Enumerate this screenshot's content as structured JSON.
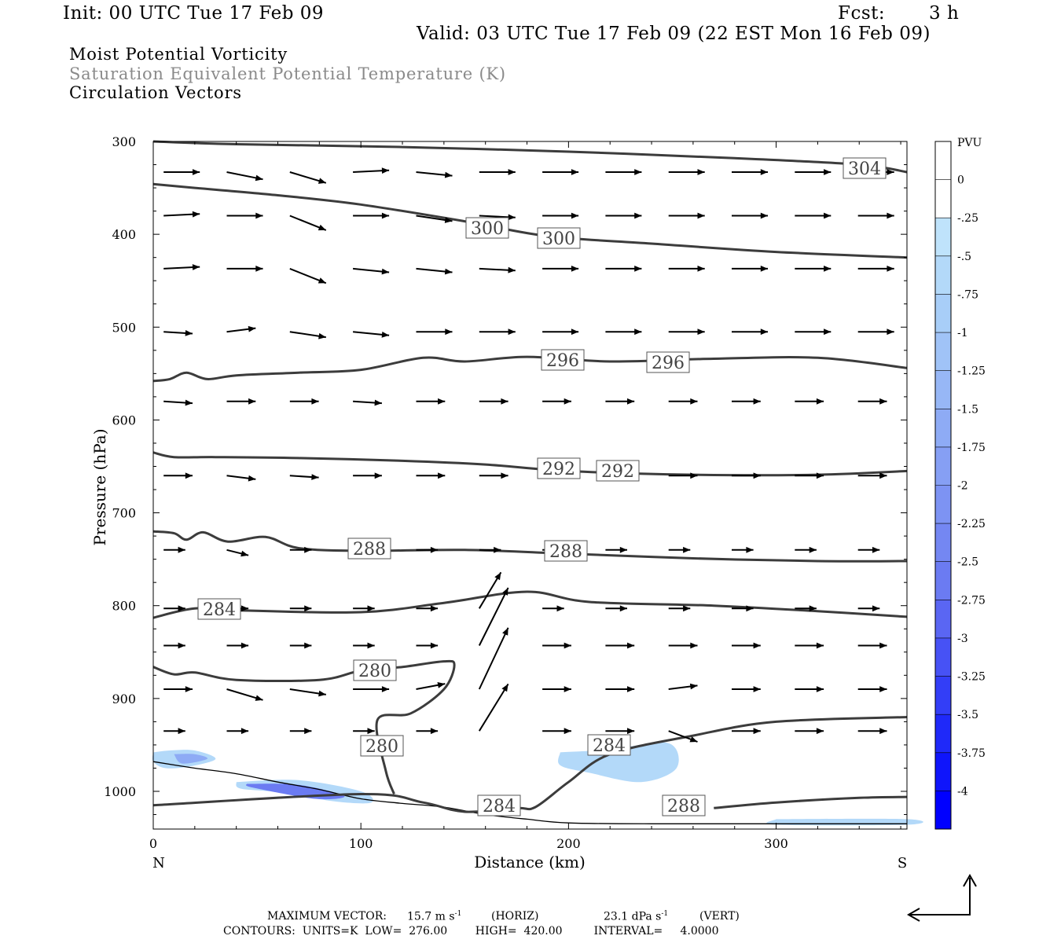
{
  "header": {
    "init": "Init: 00 UTC Tue 17 Feb 09",
    "fcst_label": "Fcst:",
    "fcst_value": "3 h",
    "valid": "Valid: 03 UTC Tue 17 Feb 09 (22 EST Mon 16 Feb 09)"
  },
  "fields": {
    "line1": "Moist Potential Vorticity",
    "line2": "Saturation Equivalent Potential Temperature (K)",
    "line3": "Circulation Vectors"
  },
  "colors": {
    "contour": "#3c3c3c",
    "accent_gray": "#8a8a8a",
    "pv_light": "#bfe3fb",
    "pv_dark": "#0000ff"
  },
  "footer": {
    "max_vector_label": "MAXIMUM VECTOR:",
    "max_horiz": "15.7 m s",
    "horiz_tag": "(HORIZ)",
    "max_vert": "23.1 dPa s",
    "vert_tag": "(VERT)",
    "contours": "CONTOURS:  UNITS=K  LOW=  276.00        HIGH=  420.00         INTERVAL=     4.0000"
  },
  "chart_data": {
    "type": "contour-cross-section",
    "xlabel": "Distance (km)",
    "ylabel": "Pressure (hPa)",
    "xlim": [
      0,
      363
    ],
    "ylim": [
      1040,
      300
    ],
    "x_ticks": [
      0,
      100,
      200,
      300
    ],
    "y_ticks": [
      300,
      400,
      500,
      600,
      700,
      800,
      900,
      1000
    ],
    "x_end_labels": {
      "left": "N",
      "right": "S"
    },
    "colorbar": {
      "title": "PVU",
      "levels": [
        "0",
        "-.25",
        "-.5",
        "-.75",
        "-1",
        "-1.25",
        "-1.5",
        "-1.75",
        "-2",
        "-2.25",
        "-2.5",
        "-2.75",
        "-3",
        "-3.25",
        "-3.5",
        "-3.75",
        "-4"
      ],
      "colors": [
        "#ffffff",
        "#ffffff",
        "#bfe3fb",
        "#b3d9f9",
        "#a8cef8",
        "#a0c3f7",
        "#97b7f6",
        "#8eabf5",
        "#869ff4",
        "#7d93f3",
        "#7487f2",
        "#6b7bf2",
        "#5a66f3",
        "#4752f5",
        "#333ef7",
        "#1f29f9",
        "#0f15fb",
        "#0000ff"
      ]
    },
    "contour_labels": [
      "304",
      "300",
      "300",
      "296",
      "296",
      "292",
      "292",
      "288",
      "288",
      "284",
      "280",
      "280",
      "284",
      "284",
      "288"
    ],
    "contours": [
      {
        "level": 304,
        "points": [
          [
            0,
            300
          ],
          [
            40,
            303
          ],
          [
            120,
            306
          ],
          [
            200,
            311
          ],
          [
            280,
            318
          ],
          [
            340,
            325
          ],
          [
            363,
            333
          ]
        ]
      },
      {
        "level": 300,
        "points": [
          [
            0,
            346
          ],
          [
            20,
            350
          ],
          [
            60,
            358
          ],
          [
            100,
            368
          ],
          [
            150,
            386
          ],
          [
            190,
            402
          ],
          [
            240,
            410
          ],
          [
            300,
            419
          ],
          [
            363,
            425
          ]
        ]
      },
      {
        "level": 296,
        "points": [
          [
            0,
            558
          ],
          [
            8,
            556
          ],
          [
            16,
            549
          ],
          [
            26,
            556
          ],
          [
            40,
            552
          ],
          [
            70,
            549
          ],
          [
            100,
            546
          ],
          [
            130,
            533
          ],
          [
            150,
            537
          ],
          [
            180,
            532
          ],
          [
            220,
            537
          ],
          [
            270,
            534
          ],
          [
            320,
            533
          ],
          [
            363,
            544
          ]
        ]
      },
      {
        "level": 292,
        "points": [
          [
            0,
            635
          ],
          [
            10,
            640
          ],
          [
            30,
            640
          ],
          [
            70,
            641
          ],
          [
            120,
            644
          ],
          [
            160,
            648
          ],
          [
            200,
            655
          ],
          [
            260,
            659
          ],
          [
            320,
            659
          ],
          [
            363,
            655
          ]
        ]
      },
      {
        "level": 288,
        "points": [
          [
            0,
            720
          ],
          [
            10,
            722
          ],
          [
            16,
            729
          ],
          [
            24,
            721
          ],
          [
            36,
            731
          ],
          [
            54,
            726
          ],
          [
            70,
            738
          ],
          [
            100,
            741
          ],
          [
            150,
            740
          ],
          [
            200,
            744
          ],
          [
            260,
            749
          ],
          [
            320,
            752
          ],
          [
            363,
            752
          ]
        ]
      },
      {
        "level": 284,
        "points": [
          [
            0,
            813
          ],
          [
            20,
            803
          ],
          [
            40,
            805
          ],
          [
            100,
            807
          ],
          [
            140,
            797
          ],
          [
            180,
            785
          ],
          [
            210,
            796
          ],
          [
            270,
            800
          ],
          [
            320,
            806
          ],
          [
            363,
            812
          ]
        ]
      },
      {
        "level": 280,
        "points": [
          [
            0,
            866
          ],
          [
            10,
            874
          ],
          [
            20,
            872
          ],
          [
            40,
            880
          ],
          [
            80,
            880
          ],
          [
            100,
            870
          ],
          [
            120,
            866
          ],
          [
            140,
            860
          ],
          [
            145,
            864
          ],
          [
            140,
            890
          ],
          [
            124,
            916
          ],
          [
            108,
            923
          ],
          [
            112,
            978
          ],
          [
            116,
            1003
          ]
        ]
      },
      {
        "level": 284,
        "points": [
          [
            0,
            1015
          ],
          [
            100,
            1003
          ],
          [
            130,
            1012
          ],
          [
            150,
            1022
          ],
          [
            175,
            1018
          ],
          [
            184,
            1017
          ],
          [
            200,
            990
          ],
          [
            220,
            960
          ],
          [
            260,
            940
          ],
          [
            300,
            925
          ],
          [
            363,
            920
          ]
        ]
      },
      {
        "level": 288,
        "points": [
          [
            270,
            1018
          ],
          [
            300,
            1012
          ],
          [
            340,
            1007
          ],
          [
            363,
            1006
          ]
        ]
      }
    ],
    "terrain": [
      [
        0,
        968
      ],
      [
        20,
        975
      ],
      [
        40,
        981
      ],
      [
        60,
        990
      ],
      [
        80,
        998
      ],
      [
        100,
        1008
      ],
      [
        120,
        1013
      ],
      [
        140,
        1017
      ],
      [
        160,
        1025
      ],
      [
        180,
        1030
      ],
      [
        200,
        1034
      ],
      [
        240,
        1035
      ],
      [
        300,
        1035
      ],
      [
        363,
        1035
      ]
    ],
    "pv_regions": [
      {
        "pv": -0.5,
        "points": [
          [
            0,
            958
          ],
          [
            8,
            956
          ],
          [
            20,
            956
          ],
          [
            30,
            965
          ],
          [
            18,
            973
          ],
          [
            6,
            975
          ],
          [
            0,
            968
          ]
        ]
      },
      {
        "pv": -1.5,
        "points": [
          [
            10,
            960
          ],
          [
            20,
            960
          ],
          [
            26,
            965
          ],
          [
            14,
            970
          ]
        ]
      },
      {
        "pv": -0.5,
        "points": [
          [
            40,
            990
          ],
          [
            70,
            988
          ],
          [
            100,
            1000
          ],
          [
            105,
            1012
          ],
          [
            88,
            1011
          ],
          [
            60,
            1001
          ],
          [
            42,
            997
          ]
        ]
      },
      {
        "pv": -2.5,
        "points": [
          [
            45,
            992
          ],
          [
            70,
            993
          ],
          [
            92,
            1005
          ],
          [
            78,
            1008
          ],
          [
            48,
            996
          ]
        ]
      },
      {
        "pv": -0.5,
        "points": [
          [
            196,
            958
          ],
          [
            220,
            955
          ],
          [
            248,
            948
          ],
          [
            252,
            975
          ],
          [
            235,
            990
          ],
          [
            210,
            980
          ],
          [
            196,
            972
          ]
        ]
      },
      {
        "pv": -0.5,
        "points": [
          [
            300,
            1030
          ],
          [
            363,
            1030
          ],
          [
            363,
            1036
          ],
          [
            300,
            1036
          ]
        ]
      }
    ],
    "vector_rows": [
      {
        "p": 333,
        "u": [
          1.0,
          1.0,
          1.0,
          1.0,
          1.0,
          1.0,
          1.0,
          1.0,
          1.0,
          1.0,
          1.0,
          1.0
        ],
        "w": [
          0,
          -0.2,
          -0.3,
          0.05,
          -0.1,
          0,
          0,
          0,
          0,
          0,
          0,
          0
        ]
      },
      {
        "p": 380,
        "u": [
          1.0,
          1.0,
          1.0,
          1.0,
          1.0,
          1.0,
          1.0,
          1.0,
          1.0,
          1.0,
          1.0,
          1.0
        ],
        "w": [
          0.05,
          0,
          -0.4,
          0,
          -0.15,
          -0.05,
          0,
          0,
          0,
          0,
          0,
          0
        ]
      },
      {
        "p": 437,
        "u": [
          1.0,
          1.0,
          1.0,
          1.0,
          1.0,
          1.0,
          1.0,
          1.0,
          1.0,
          1.0,
          1.0,
          1.0
        ],
        "w": [
          0.05,
          0,
          -0.4,
          -0.1,
          -0.1,
          -0.05,
          0,
          0,
          0,
          0,
          0,
          0
        ]
      },
      {
        "p": 505,
        "u": [
          0.8,
          0.8,
          1.0,
          1.0,
          1.0,
          1.0,
          1.0,
          1.0,
          1.0,
          1.0,
          1.0,
          1.0
        ],
        "w": [
          -0.05,
          0.1,
          -0.15,
          -0.1,
          0,
          0,
          0,
          0,
          0,
          0,
          0,
          0
        ]
      },
      {
        "p": 580,
        "u": [
          0.8,
          0.8,
          0.8,
          0.8,
          0.8,
          0.8,
          0.8,
          0.8,
          0.8,
          0.8,
          0.8,
          0.8
        ],
        "w": [
          -0.05,
          0,
          0,
          -0.05,
          0,
          0,
          0,
          0,
          0,
          0,
          0,
          0
        ]
      },
      {
        "p": 660,
        "u": [
          0.8,
          0.8,
          0.8,
          0.8,
          0.8,
          0.8,
          0.8,
          0.8,
          0.8,
          0.8,
          0.8,
          0.8
        ],
        "w": [
          0,
          -0.1,
          -0.05,
          0,
          0,
          0,
          0,
          0,
          0,
          0,
          0,
          0
        ]
      },
      {
        "p": 740,
        "u": [
          0.6,
          0.6,
          0.6,
          0.6,
          0.6,
          0.6,
          0.6,
          0.6,
          0.6,
          0.6,
          0.6,
          0.6
        ],
        "w": [
          0,
          -0.15,
          0,
          0,
          0,
          0,
          0,
          0,
          0,
          0,
          0,
          0
        ]
      },
      {
        "p": 803,
        "u": [
          0.6,
          0.6,
          0.6,
          0.6,
          0.6,
          0.6,
          0.6,
          0.6,
          0.6,
          0.6,
          0.6,
          0.6
        ],
        "w": [
          0,
          0,
          0,
          0,
          0,
          1.0,
          0,
          0,
          0,
          0,
          0,
          0
        ]
      },
      {
        "p": 843,
        "u": [
          0.6,
          0.6,
          0.6,
          0.6,
          0.6,
          0.8,
          0.8,
          0.8,
          0.8,
          0.8,
          0.8,
          0.8
        ],
        "w": [
          0,
          0,
          0,
          0,
          0,
          1.6,
          0,
          0,
          0,
          0,
          0,
          0
        ]
      },
      {
        "p": 890,
        "u": [
          0.8,
          1.0,
          1.0,
          1.0,
          0.8,
          0.8,
          0.8,
          0.8,
          0.8,
          0.8,
          0.8,
          0.8
        ],
        "w": [
          0,
          -0.3,
          -0.15,
          0,
          0.15,
          1.7,
          0,
          0,
          0.1,
          0,
          0,
          0
        ]
      },
      {
        "p": 935,
        "u": [
          0.6,
          0.6,
          0.6,
          0.6,
          0.6,
          0.8,
          0.8,
          0.8,
          0.8,
          0.8,
          0.8,
          0.8
        ],
        "w": [
          0,
          0,
          0,
          0,
          0,
          1.3,
          0,
          0,
          -0.3,
          0,
          0,
          0
        ]
      }
    ],
    "max_vector_horiz": "15.7 m s-1",
    "max_vector_vert": "23.1 dPa s-1"
  }
}
